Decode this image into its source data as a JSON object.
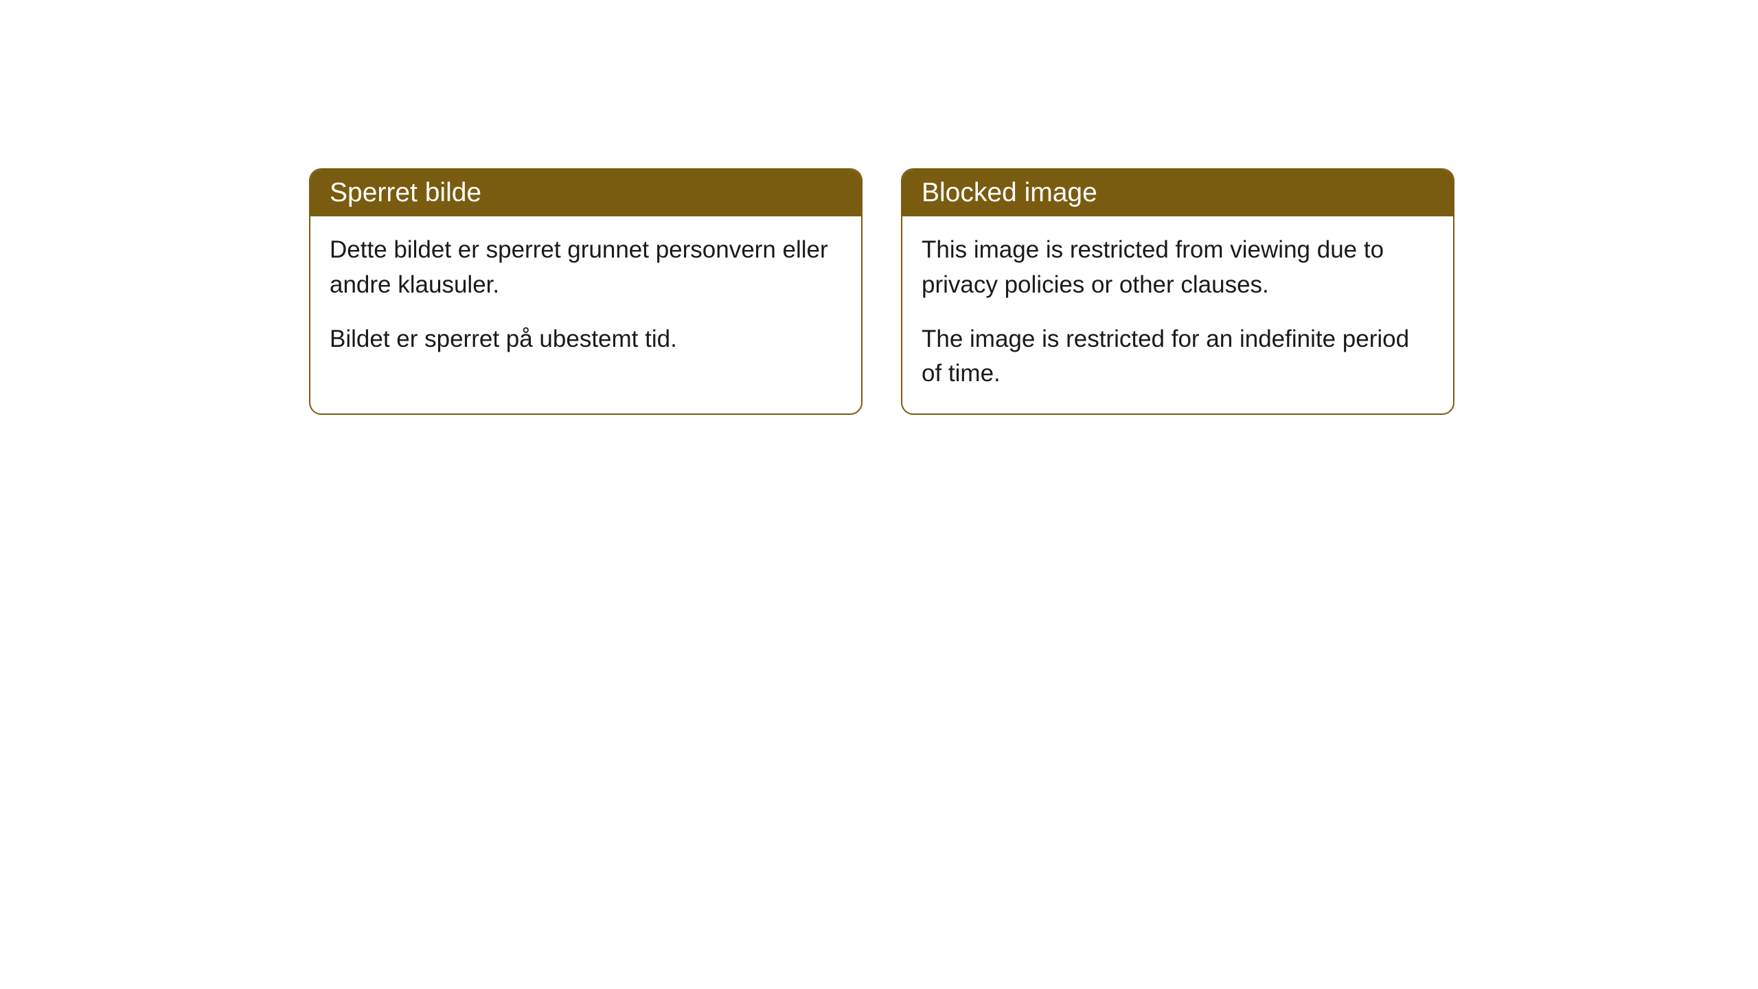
{
  "cards": [
    {
      "title": "Sperret bilde",
      "paragraph1": "Dette bildet er sperret grunnet personvern eller andre klausuler.",
      "paragraph2": "Bildet er sperret på ubestemt tid."
    },
    {
      "title": "Blocked image",
      "paragraph1": "This image is restricted from viewing due to privacy policies or other clauses.",
      "paragraph2": "The image is restricted for an indefinite period of time."
    }
  ],
  "style": {
    "header_bg_color": "#7a5c11",
    "header_text_color": "#ffffff",
    "border_color": "#7a5c11",
    "body_text_color": "#1a1a1a",
    "body_bg_color": "#ffffff",
    "page_bg_color": "#ffffff",
    "border_radius": 18,
    "title_fontsize": 39,
    "body_fontsize": 35
  }
}
